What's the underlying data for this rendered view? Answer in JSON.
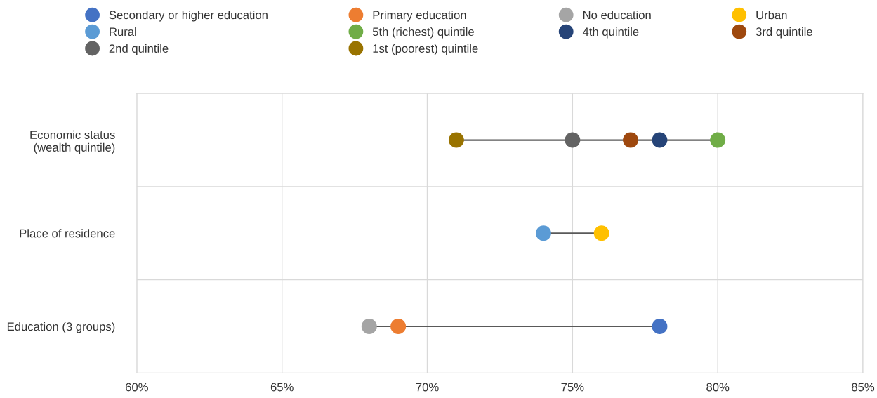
{
  "chart_data": {
    "type": "scatter",
    "orientation": "horizontal",
    "categories": [
      "Economic status\n(wealth quintile)",
      "Place of residence",
      "Education (3 groups)"
    ],
    "xlim": [
      60,
      85
    ],
    "xticks": [
      {
        "value": 60,
        "label": "60%"
      },
      {
        "value": 65,
        "label": "65%"
      },
      {
        "value": 70,
        "label": "70%"
      },
      {
        "value": 75,
        "label": "75%"
      },
      {
        "value": 80,
        "label": "80%"
      },
      {
        "value": 85,
        "label": "85%"
      }
    ],
    "grid": true,
    "legend": "top",
    "marker": "circle",
    "series": [
      {
        "name": "Secondary or higher education",
        "color": "#4472c4",
        "values": [
          null,
          null,
          78
        ]
      },
      {
        "name": "Primary education",
        "color": "#ed7d31",
        "values": [
          null,
          null,
          69
        ]
      },
      {
        "name": "No education",
        "color": "#a5a5a5",
        "values": [
          null,
          null,
          68
        ]
      },
      {
        "name": "Urban",
        "color": "#ffc000",
        "values": [
          null,
          76,
          null
        ]
      },
      {
        "name": "Rural",
        "color": "#5b9bd5",
        "values": [
          null,
          74,
          null
        ]
      },
      {
        "name": "5th (richest) quintile",
        "color": "#70ad47",
        "values": [
          80,
          null,
          null
        ]
      },
      {
        "name": "4th quintile",
        "color": "#264478",
        "values": [
          78,
          null,
          null
        ]
      },
      {
        "name": "3rd quintile",
        "color": "#9e480e",
        "values": [
          77,
          null,
          null
        ]
      },
      {
        "name": "2nd quintile",
        "color": "#636363",
        "values": [
          75,
          null,
          null
        ]
      },
      {
        "name": "1st (poorest) quintile",
        "color": "#997300",
        "values": [
          71,
          null,
          null
        ]
      }
    ]
  }
}
